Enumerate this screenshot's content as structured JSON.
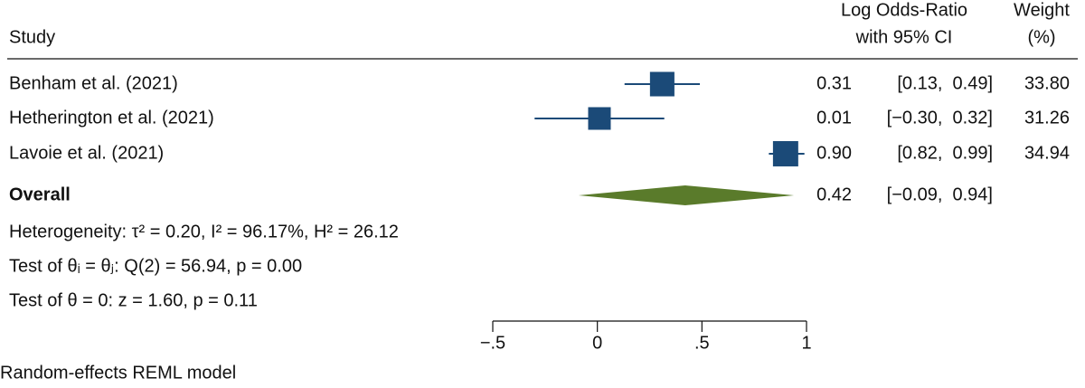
{
  "chart_data": {
    "type": "forest",
    "column_headers": {
      "study": "Study",
      "effect": [
        "Log Odds-Ratio",
        "with 95% CI"
      ],
      "weight": [
        "Weight",
        "(%)"
      ]
    },
    "studies": [
      {
        "name": "Benham et al. (2021)",
        "estimate": 0.31,
        "ci": [
          0.13,
          0.49
        ],
        "weight": 33.8,
        "estimate_label": "0.31",
        "ci_label": "[0.13,  0.49]",
        "weight_label": "33.80"
      },
      {
        "name": "Hetherington et al. (2021)",
        "estimate": 0.01,
        "ci": [
          -0.3,
          0.32
        ],
        "weight": 31.26,
        "estimate_label": "0.01",
        "ci_label": "[−0.30,  0.32]",
        "weight_label": "31.26"
      },
      {
        "name": "Lavoie et al. (2021)",
        "estimate": 0.9,
        "ci": [
          0.82,
          0.99
        ],
        "weight": 34.94,
        "estimate_label": "0.90",
        "ci_label": "[0.82,  0.99]",
        "weight_label": "34.94"
      }
    ],
    "overall": {
      "name": "Overall",
      "estimate": 0.42,
      "ci": [
        -0.09,
        0.94
      ],
      "estimate_label": "0.42",
      "ci_label": "[−0.09,  0.94]"
    },
    "notes": [
      "Heterogeneity: τ² = 0.20, I² = 96.17%, H² = 26.12",
      "Test of θᵢ = θⱼ: Q(2) = 56.94, p = 0.00",
      "Test of θ = 0: z = 1.60, p = 0.11"
    ],
    "footer": "Random-effects REML model",
    "xlim": [
      -0.5,
      1
    ],
    "xticks": [
      {
        "value": -0.5,
        "label": "−.5"
      },
      0,
      {
        "value": 0.5,
        "label": ".5"
      },
      1
    ],
    "box_color": "#1b4a78",
    "diamond_color": "#5a7b2b"
  }
}
